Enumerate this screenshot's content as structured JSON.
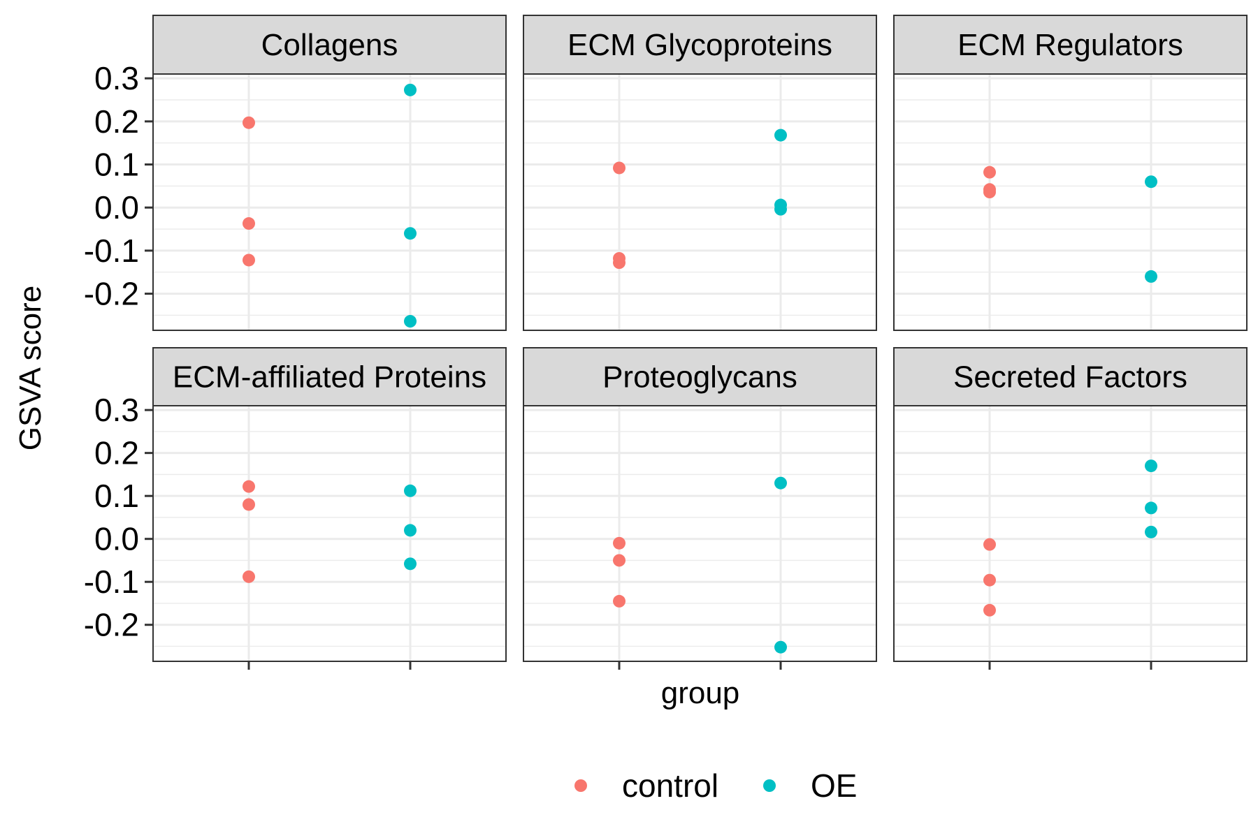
{
  "chart_data": {
    "type": "scatter",
    "xlabel": "group",
    "ylabel": "GSVA score",
    "groups": [
      "control",
      "OE"
    ],
    "ylim": [
      -0.285,
      0.31
    ],
    "y_ticks": [
      0.3,
      0.2,
      0.1,
      0.0,
      -0.1,
      -0.2
    ],
    "y_tick_labels": [
      "0.3",
      "0.2",
      "0.1",
      "0.0",
      "-0.1",
      "-0.2"
    ],
    "grid": true,
    "legend": {
      "position": "bottom",
      "entries": [
        {
          "label": "control",
          "color": "#F8766D"
        },
        {
          "label": "OE",
          "color": "#00BFC4"
        }
      ]
    },
    "panels": [
      {
        "title": "Collagens",
        "series": [
          {
            "group": "control",
            "values": [
              0.197,
              -0.037,
              -0.122
            ]
          },
          {
            "group": "OE",
            "values": [
              0.273,
              -0.06,
              -0.264
            ]
          }
        ]
      },
      {
        "title": "ECM Glycoproteins",
        "series": [
          {
            "group": "control",
            "values": [
              0.092,
              -0.118,
              -0.128
            ]
          },
          {
            "group": "OE",
            "values": [
              0.168,
              0.006,
              -0.004
            ]
          }
        ]
      },
      {
        "title": "ECM Regulators",
        "series": [
          {
            "group": "control",
            "values": [
              0.082,
              0.042,
              0.036
            ]
          },
          {
            "group": "OE",
            "values": [
              0.06,
              -0.16
            ]
          }
        ]
      },
      {
        "title": "ECM-affiliated Proteins",
        "series": [
          {
            "group": "control",
            "values": [
              0.122,
              0.08,
              -0.088
            ]
          },
          {
            "group": "OE",
            "values": [
              0.112,
              0.02,
              -0.058
            ]
          }
        ]
      },
      {
        "title": "Proteoglycans",
        "series": [
          {
            "group": "control",
            "values": [
              -0.01,
              -0.05,
              -0.145
            ]
          },
          {
            "group": "OE",
            "values": [
              0.13,
              -0.252
            ]
          }
        ]
      },
      {
        "title": "Secreted Factors",
        "series": [
          {
            "group": "control",
            "values": [
              -0.013,
              -0.096,
              -0.166
            ]
          },
          {
            "group": "OE",
            "values": [
              0.17,
              0.072,
              0.016
            ]
          }
        ]
      }
    ]
  }
}
